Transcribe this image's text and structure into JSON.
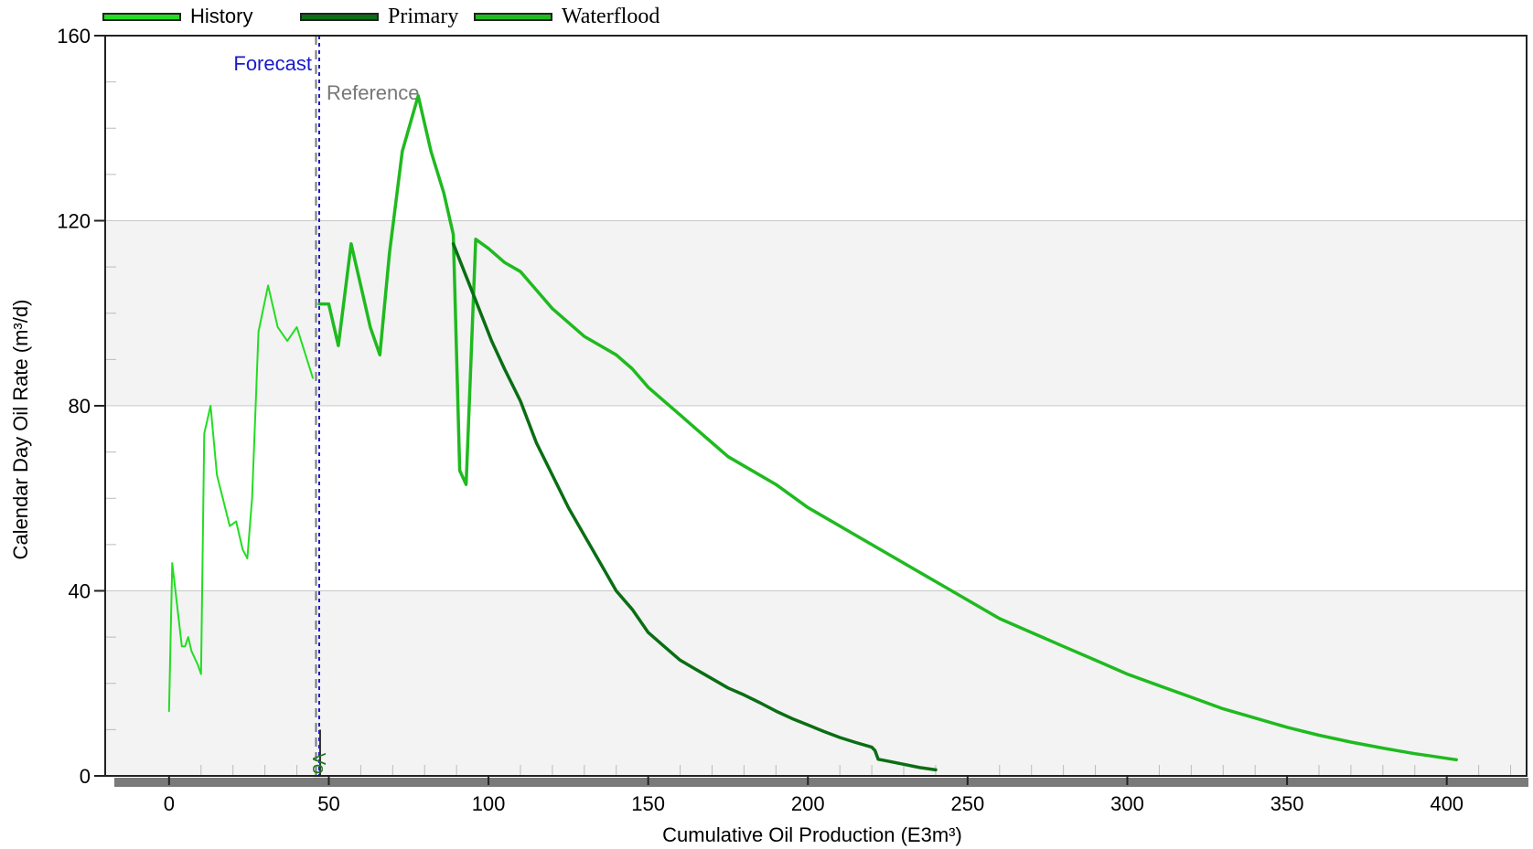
{
  "legend": [
    {
      "label": "History",
      "color": "#22dd22"
    },
    {
      "label": "Primary",
      "color": "#0a6e14"
    },
    {
      "label": "Waterflood",
      "color": "#1fba1f"
    }
  ],
  "chart_data": {
    "type": "line",
    "xlabel": "Cumulative Oil Production (E3m³)",
    "ylabel": "Calendar Day Oil Rate (m³/d)",
    "xlim": [
      -20,
      425
    ],
    "ylim": [
      0,
      160
    ],
    "xticks": [
      0,
      50,
      100,
      150,
      200,
      250,
      300,
      350,
      400
    ],
    "yticks": [
      0,
      40,
      80,
      120,
      160
    ],
    "grid": true,
    "legend_position": "top",
    "markers": {
      "forecast": {
        "label": "Forecast",
        "x": 47,
        "color": "#1a1acc"
      },
      "reference": {
        "label": "Reference",
        "x": 46,
        "color": "#777777"
      },
      "vol_label": "Vol"
    },
    "series": [
      {
        "name": "History",
        "color": "#22dd22",
        "width": 2,
        "x": [
          0,
          1,
          4,
          5,
          6,
          7,
          9,
          10,
          11,
          13,
          15,
          19,
          21,
          23,
          24.5,
          26,
          28,
          31,
          34,
          37,
          40,
          45
        ],
        "y": [
          14,
          46,
          28,
          28,
          30,
          27,
          24,
          22,
          74,
          80,
          65,
          54,
          55,
          49,
          47,
          60,
          96,
          106,
          97,
          94,
          97,
          86
        ]
      },
      {
        "name": "Waterflood",
        "color": "#1fba1f",
        "width": 3.5,
        "x": [
          47,
          50,
          53,
          57,
          60,
          63,
          66,
          69,
          73,
          78,
          82,
          86,
          89,
          91,
          93,
          96,
          100,
          105,
          110,
          115,
          120,
          125,
          130,
          140,
          145,
          150,
          155,
          160,
          165,
          170,
          175,
          180,
          190,
          200,
          210,
          220,
          230,
          240,
          250,
          260,
          270,
          280,
          290,
          300,
          310,
          320,
          330,
          340,
          350,
          360,
          370,
          380,
          390,
          395,
          400,
          403
        ],
        "y": [
          102,
          102,
          93,
          115,
          106,
          97,
          91,
          113,
          135,
          147,
          135,
          126,
          117,
          66,
          63,
          116,
          114,
          111,
          109,
          105,
          101,
          98,
          95,
          91,
          88,
          84,
          81,
          78,
          75,
          72,
          69,
          67,
          63,
          58,
          54,
          50,
          46,
          42,
          38,
          34,
          31,
          28,
          25,
          22,
          19.5,
          17,
          14.5,
          12.5,
          10.5,
          8.8,
          7.3,
          6,
          4.8,
          4.3,
          3.8,
          3.5
        ]
      },
      {
        "name": "Primary",
        "color": "#0a6e14",
        "width": 3.5,
        "x": [
          89,
          93,
          97,
          101,
          105,
          110,
          115,
          120,
          125,
          130,
          135,
          140,
          145,
          150,
          155,
          160,
          165,
          170,
          175,
          180,
          185,
          190,
          195,
          200,
          205,
          210,
          215,
          220,
          221,
          222,
          225,
          230,
          235,
          240
        ],
        "y": [
          115,
          108,
          101,
          94,
          88,
          81,
          72,
          65,
          58,
          52,
          46,
          40,
          36,
          31,
          28,
          25,
          23,
          21,
          19,
          17.5,
          15.8,
          14,
          12.4,
          11,
          9.6,
          8.3,
          7.2,
          6.2,
          5.5,
          3.6,
          3.2,
          2.5,
          1.8,
          1.3
        ]
      }
    ]
  }
}
